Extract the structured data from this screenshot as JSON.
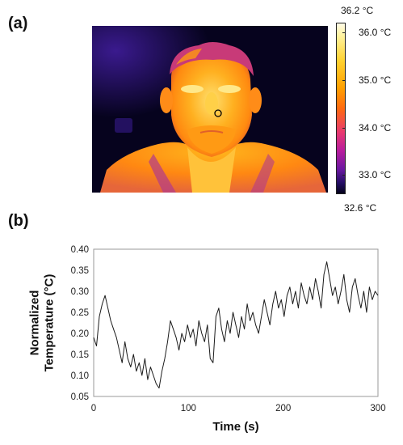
{
  "panel_a": {
    "label": "(a)",
    "colorbar": {
      "max_label": "36.2 °C",
      "min_label": "32.6 °C",
      "range": [
        32.6,
        36.2
      ],
      "ticks": [
        {
          "value": 36.0,
          "label": "36.0 °C"
        },
        {
          "value": 35.0,
          "label": "35.0 °C"
        },
        {
          "value": 34.0,
          "label": "34.0 °C"
        },
        {
          "value": 33.0,
          "label": "33.0 °C"
        }
      ],
      "colors": [
        "#04021a",
        "#220d63",
        "#6a18a0",
        "#b81d9e",
        "#e83a70",
        "#ff6a10",
        "#ffa000",
        "#ffd230",
        "#fff3a0",
        "#fffbe8"
      ]
    }
  },
  "panel_b": {
    "label": "(b)"
  },
  "chart_data": {
    "type": "line",
    "title": "",
    "xlabel": "Time (s)",
    "ylabel": "Normalized Temperature (°C)",
    "xlim": [
      0,
      300
    ],
    "ylim": [
      0.05,
      0.4
    ],
    "xticks": [
      0,
      100,
      200,
      300
    ],
    "yticks": [
      0.05,
      0.1,
      0.15,
      0.2,
      0.25,
      0.3,
      0.35,
      0.4
    ],
    "ytick_labels": [
      "0.05",
      "0.10",
      "0.15",
      "0.20",
      "0.25",
      "0.30",
      "0.35",
      "0.40"
    ],
    "grid": false,
    "line_color": "#1a1a1a",
    "series": [
      {
        "x": [
          0,
          3,
          6,
          9,
          12,
          15,
          18,
          21,
          24,
          27,
          30,
          33,
          36,
          39,
          42,
          45,
          48,
          51,
          54,
          57,
          60,
          63,
          66,
          69,
          72,
          75,
          78,
          81,
          84,
          87,
          90,
          93,
          96,
          99,
          102,
          105,
          108,
          111,
          114,
          117,
          120,
          123,
          126,
          129,
          132,
          135,
          138,
          141,
          144,
          147,
          150,
          153,
          156,
          159,
          162,
          165,
          168,
          171,
          174,
          177,
          180,
          183,
          186,
          189,
          192,
          195,
          198,
          201,
          204,
          207,
          210,
          213,
          216,
          219,
          222,
          225,
          228,
          231,
          234,
          237,
          240,
          243,
          246,
          249,
          252,
          255,
          258,
          261,
          264,
          267,
          270,
          273,
          276,
          279,
          282,
          285,
          288,
          291,
          294,
          297,
          300
        ],
        "y": [
          0.19,
          0.17,
          0.24,
          0.27,
          0.29,
          0.26,
          0.23,
          0.21,
          0.19,
          0.16,
          0.13,
          0.18,
          0.14,
          0.12,
          0.15,
          0.11,
          0.13,
          0.1,
          0.14,
          0.09,
          0.12,
          0.1,
          0.08,
          0.07,
          0.11,
          0.14,
          0.18,
          0.23,
          0.21,
          0.19,
          0.16,
          0.2,
          0.18,
          0.22,
          0.19,
          0.21,
          0.17,
          0.23,
          0.2,
          0.18,
          0.22,
          0.14,
          0.13,
          0.24,
          0.26,
          0.21,
          0.18,
          0.23,
          0.2,
          0.25,
          0.22,
          0.19,
          0.24,
          0.21,
          0.27,
          0.23,
          0.25,
          0.22,
          0.2,
          0.24,
          0.28,
          0.25,
          0.22,
          0.27,
          0.3,
          0.26,
          0.28,
          0.24,
          0.29,
          0.31,
          0.27,
          0.3,
          0.26,
          0.32,
          0.29,
          0.27,
          0.31,
          0.28,
          0.33,
          0.3,
          0.26,
          0.34,
          0.37,
          0.33,
          0.29,
          0.31,
          0.27,
          0.3,
          0.34,
          0.28,
          0.25,
          0.31,
          0.33,
          0.29,
          0.26,
          0.3,
          0.25,
          0.31,
          0.28,
          0.3,
          0.29
        ]
      }
    ]
  }
}
